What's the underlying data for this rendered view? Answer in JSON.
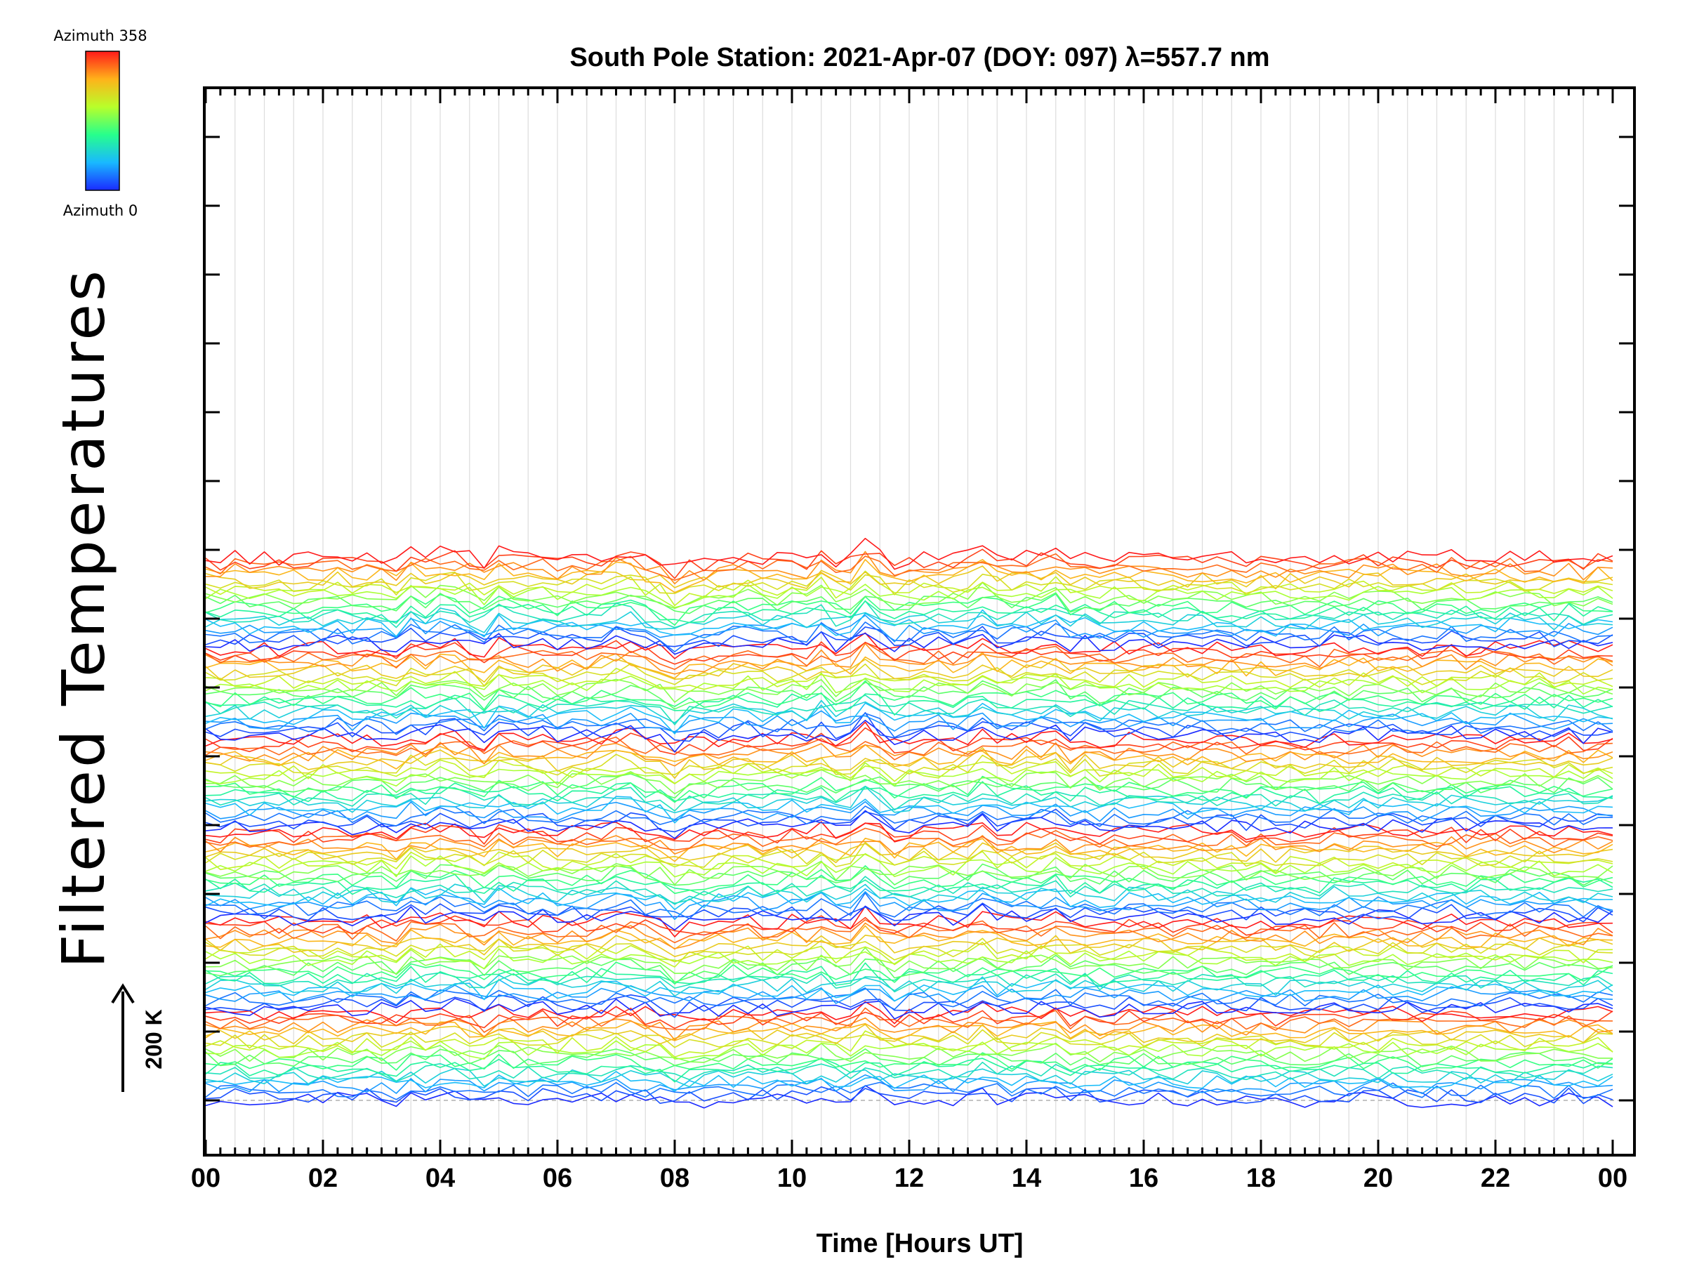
{
  "chart_data": {
    "type": "line",
    "title": "South Pole Station: 2021-Apr-07 (DOY: 097) λ=557.7 nm",
    "xlabel": "Time [Hours UT]",
    "ylabel": "Filtered Temperatures",
    "x_ticks": [
      "00",
      "02",
      "04",
      "06",
      "08",
      "10",
      "12",
      "14",
      "16",
      "18",
      "20",
      "22",
      "00"
    ],
    "xlim": [
      0,
      24
    ],
    "x_minor_step_hours": 0.25,
    "n_y_ticks": 15,
    "grid": true,
    "colorbar": {
      "top_label": "Azimuth 358",
      "bottom_label": "Azimuth 0",
      "min": 0,
      "max": 358,
      "colors": [
        "#1a2aff",
        "#19b9ff",
        "#27ff8c",
        "#b8ff2a",
        "#ffb21a",
        "#ff1a1a"
      ]
    },
    "scale_bar": {
      "label": "200 K",
      "value_k": 200
    },
    "series_count": 120,
    "groups": 6,
    "traces_per_group": 20,
    "offset_per_trace_k": 5.3,
    "samples_per_hour": 4,
    "baseline_k": 0,
    "event_times_hours": [
      3.4,
      4.1,
      4.9,
      7.1,
      8.0,
      10.4,
      11.3,
      11.8,
      13.2,
      14.6
    ],
    "note_structure": "stacked lines, one per azimuth, coloured by azimuth"
  }
}
